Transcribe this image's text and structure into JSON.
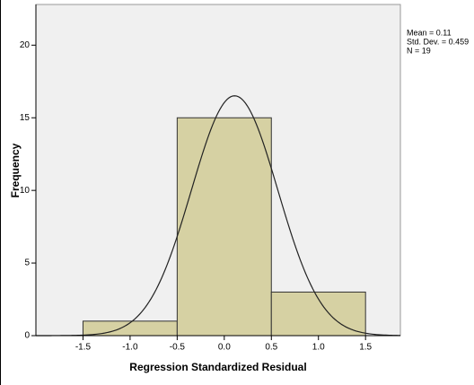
{
  "chart_data": {
    "type": "histogram",
    "x_label": "Regression Standardized Residual",
    "y_label": "Frequency",
    "bins": [
      -1.5,
      -0.5,
      0.5,
      1.5
    ],
    "values": [
      1,
      15,
      3
    ],
    "color": "#d6d1a3",
    "xlim": [
      -2.0,
      1.87
    ],
    "ylim": [
      0,
      22.8
    ],
    "xticks": [
      -1.5,
      -1.0,
      -0.5,
      0.0,
      0.5,
      1.0,
      1.5
    ],
    "yticks": [
      0,
      5,
      10,
      15,
      20
    ],
    "normal_curve": true,
    "stats": [
      {
        "label": "Mean = 0.11",
        "value": 0.11
      },
      {
        "label": "Std. Dev. = 0.459",
        "value": 0.459
      },
      {
        "label": "N = 19",
        "value": 19
      }
    ]
  }
}
